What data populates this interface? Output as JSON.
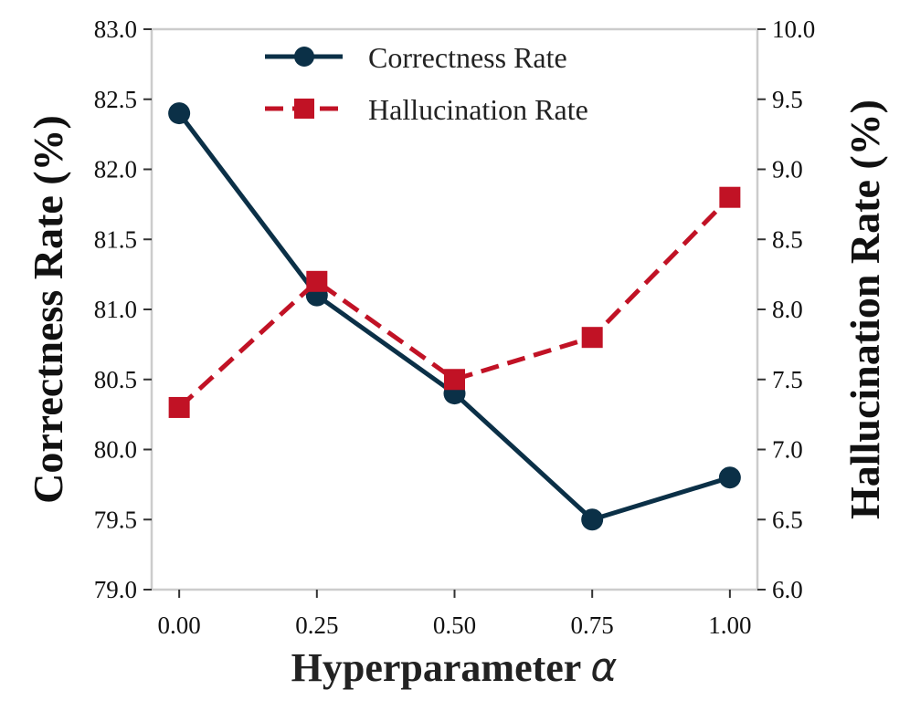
{
  "chart_data": {
    "type": "line",
    "x": [
      0.0,
      0.25,
      0.5,
      0.75,
      1.0
    ],
    "x_tick_labels": [
      "0.00",
      "0.25",
      "0.50",
      "0.75",
      "1.00"
    ],
    "xlim": [
      -0.05,
      1.05
    ],
    "xlabel": "Hyperparameter",
    "xlabel_symbol": "α",
    "ylabel_left": "Correctness Rate (%)",
    "ylabel_right": "Hallucination Rate (%)",
    "ylim_left": [
      79.0,
      83.0
    ],
    "ylim_right": [
      6.0,
      10.0
    ],
    "y_left_ticks": [
      "79.0",
      "79.5",
      "80.0",
      "80.5",
      "81.0",
      "81.5",
      "82.0",
      "82.5",
      "83.0"
    ],
    "y_right_ticks": [
      "6.0",
      "6.5",
      "7.0",
      "7.5",
      "8.0",
      "8.5",
      "9.0",
      "9.5",
      "10.0"
    ],
    "grid": false,
    "legend_position": "top-center",
    "series": [
      {
        "name": "Correctness Rate",
        "axis": "left",
        "values": [
          82.4,
          81.1,
          80.4,
          79.5,
          79.8
        ],
        "color": "#0b3047",
        "marker": "circle",
        "linestyle": "solid"
      },
      {
        "name": "Hallucination Rate",
        "axis": "right",
        "values": [
          7.3,
          8.2,
          7.5,
          7.8,
          8.8
        ],
        "color": "#c11225",
        "marker": "square",
        "linestyle": "dashed"
      }
    ]
  }
}
